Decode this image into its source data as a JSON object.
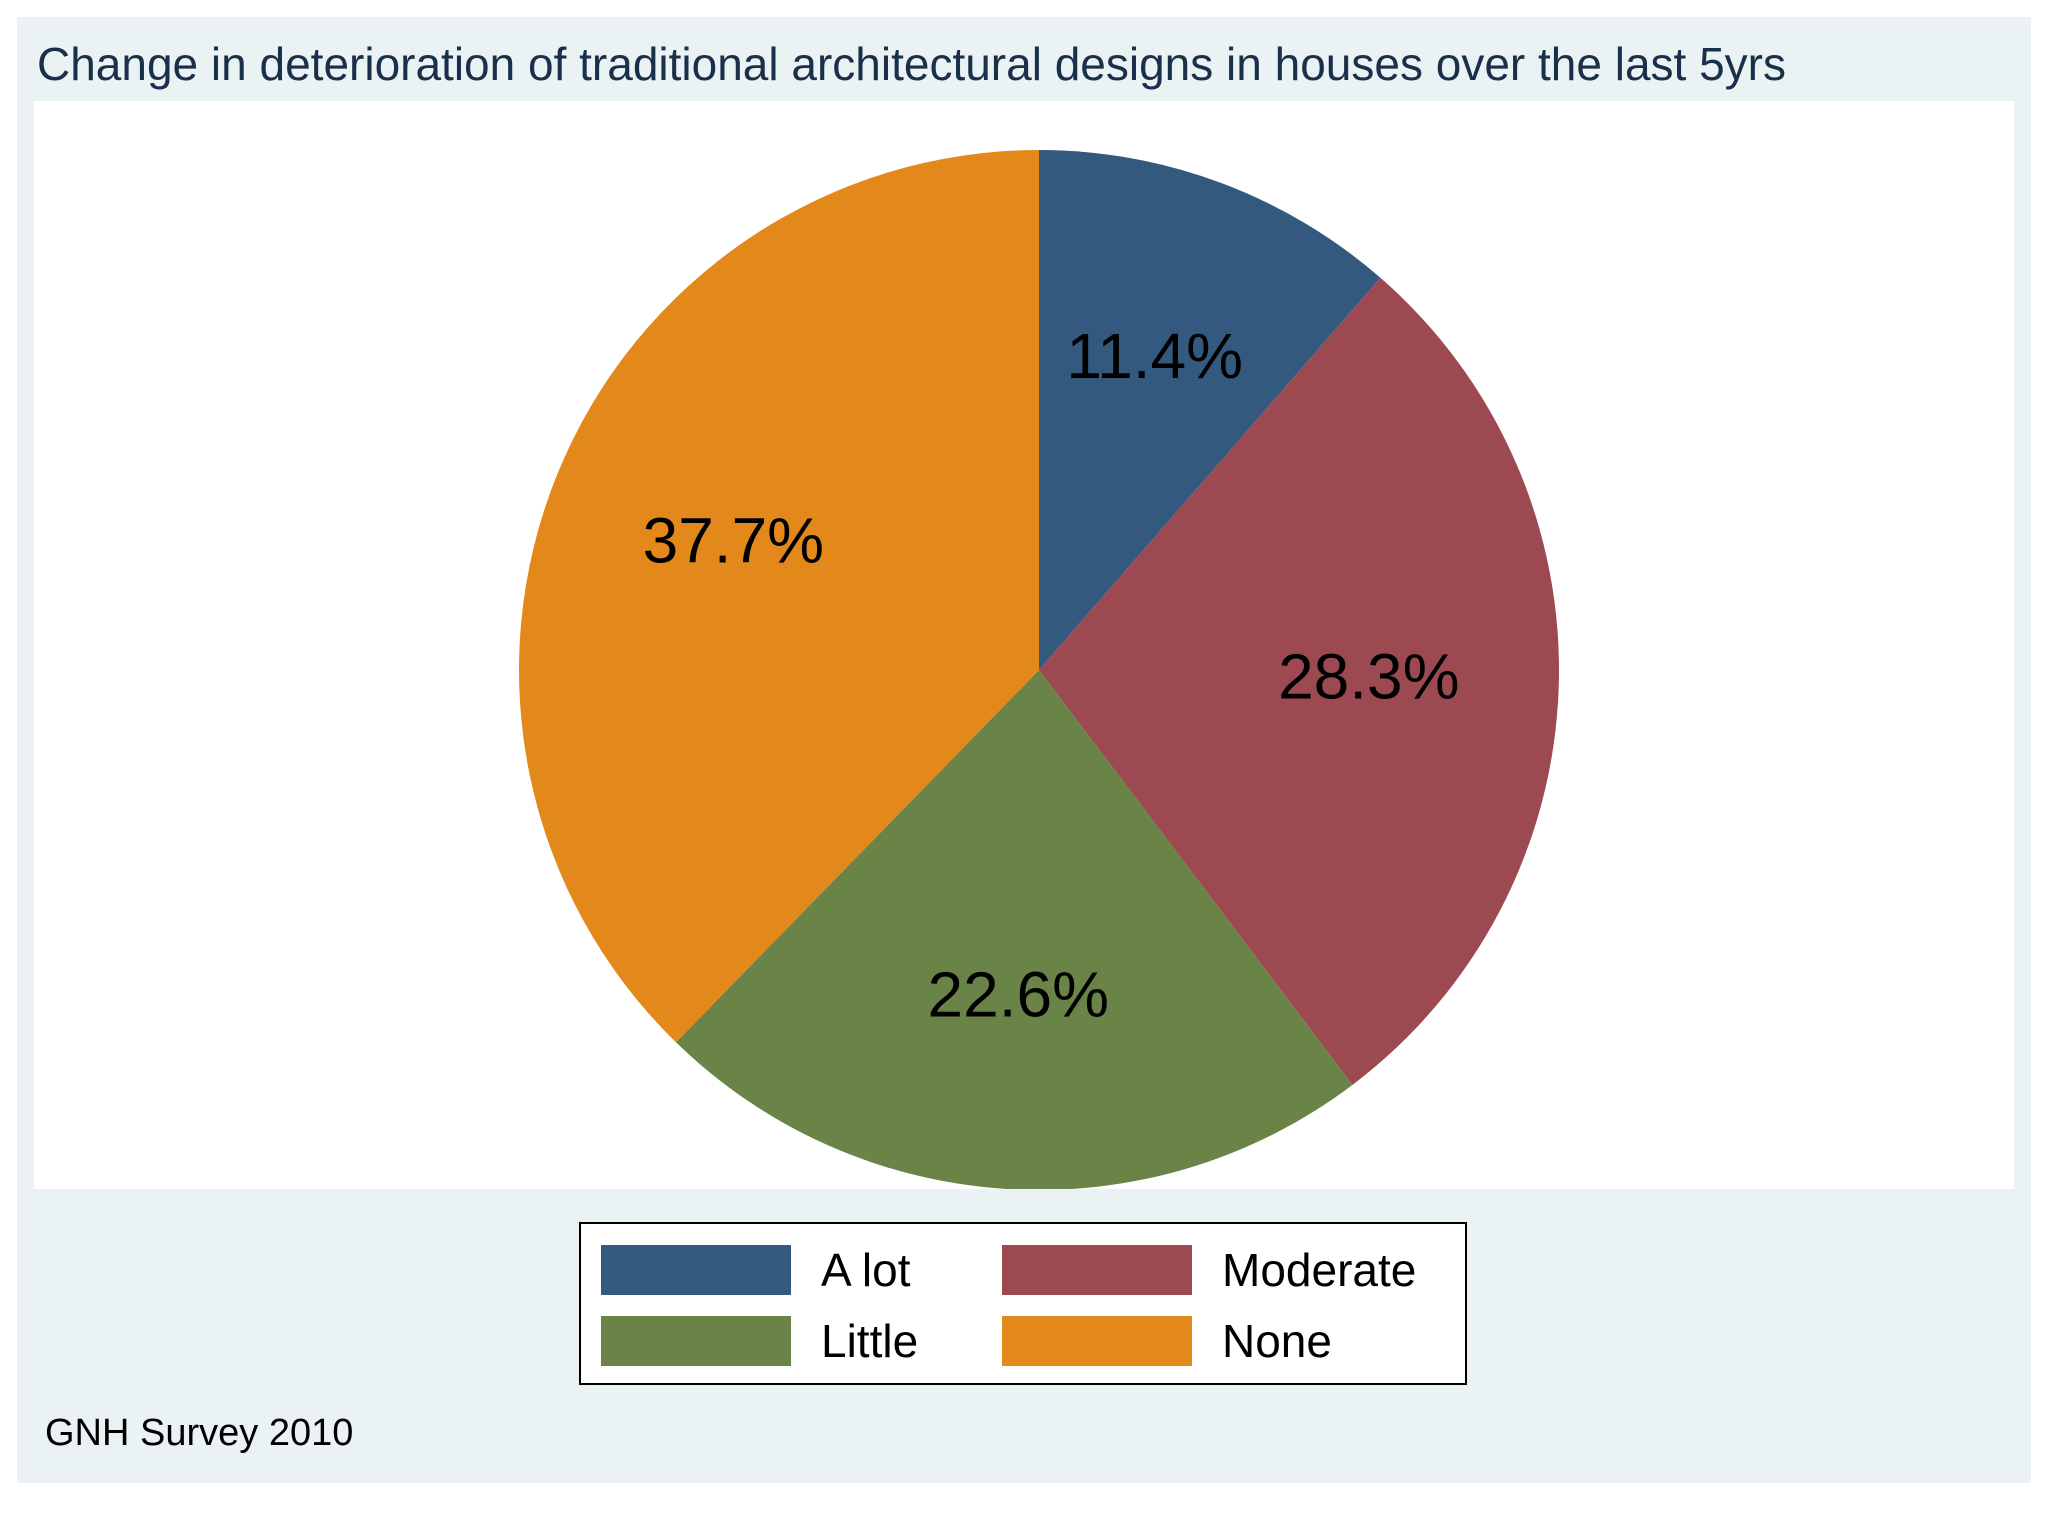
{
  "chart_data": {
    "type": "pie",
    "title": "Change in deterioration of traditional architectural designs in houses over the last 5yrs",
    "note": "GNH Survey 2010",
    "slices": [
      {
        "label": "A lot",
        "value": 11.4,
        "display": "11.4%",
        "color": "#335a7e"
      },
      {
        "label": "Moderate",
        "value": 28.3,
        "display": "28.3%",
        "color": "#9c4952"
      },
      {
        "label": "Little",
        "value": 22.6,
        "display": "22.6%",
        "color": "#6a8346"
      },
      {
        "label": "None",
        "value": 37.7,
        "display": "37.7%",
        "color": "#e3891b"
      }
    ],
    "start_angle_deg": 90,
    "direction": "clockwise",
    "legend": {
      "position": "bottom",
      "columns": 2
    }
  },
  "colors": {
    "figure_background": "#eaf2f3",
    "plot_background": "#ffffff",
    "title_color": "#1a2f4a"
  }
}
